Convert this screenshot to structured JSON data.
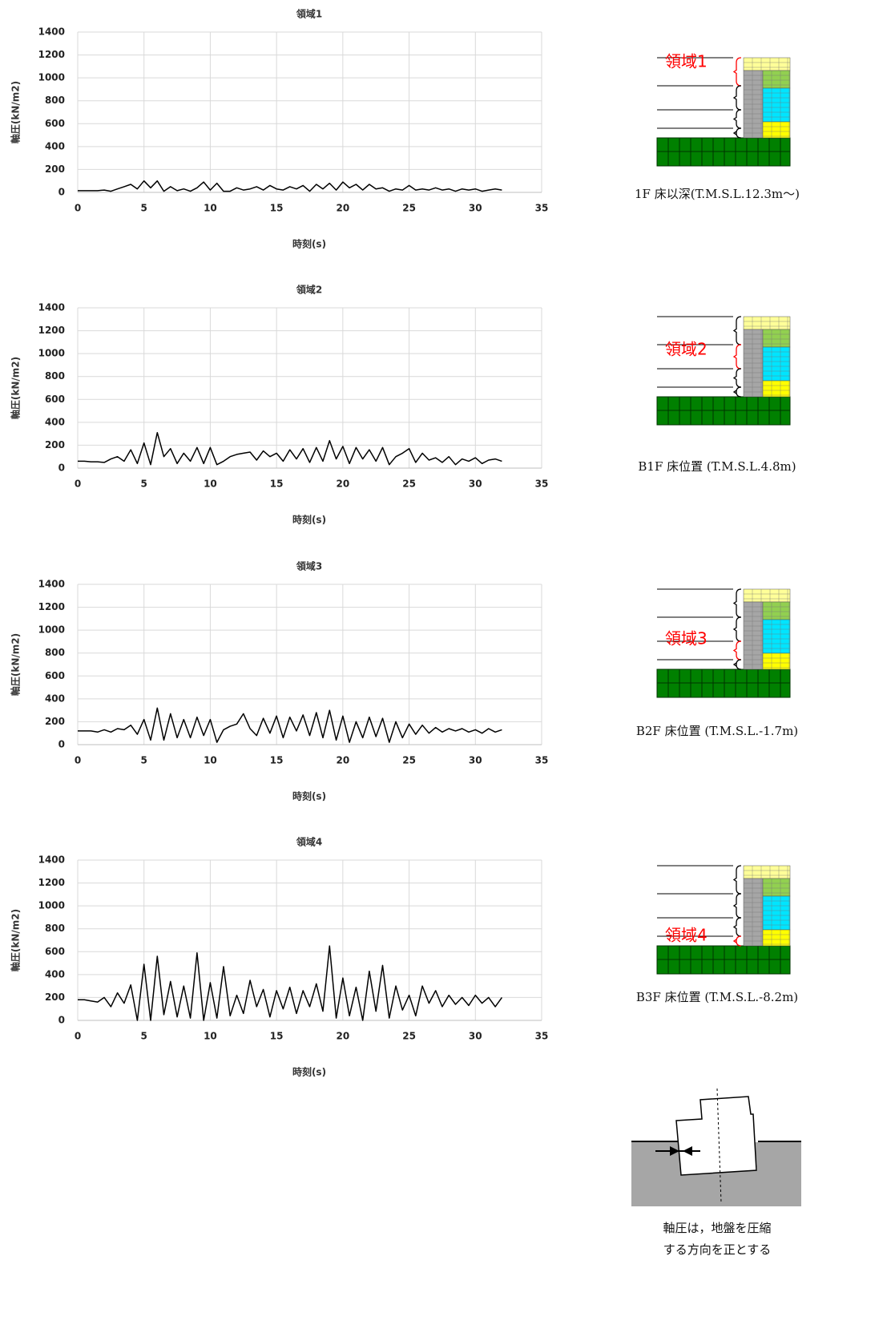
{
  "chart_data": [
    {
      "type": "line",
      "title": "領域1",
      "x_label": "時刻(s)",
      "y_label": "軸圧(kN/m2)",
      "color": "#000000",
      "grid": true,
      "xlim": [
        0,
        35
      ],
      "xticks": [
        0,
        5,
        10,
        15,
        20,
        25,
        30,
        35
      ],
      "ylim": [
        0,
        1400
      ],
      "yticks": [
        0,
        200,
        400,
        600,
        800,
        1000,
        1200,
        1400
      ],
      "x": [
        0,
        0.5,
        1,
        1.5,
        2,
        2.5,
        3,
        3.5,
        4,
        4.5,
        5,
        5.5,
        6,
        6.5,
        7,
        7.5,
        8,
        8.5,
        9,
        9.5,
        10,
        10.5,
        11,
        11.5,
        12,
        12.5,
        13,
        13.5,
        14,
        14.5,
        15,
        15.5,
        16,
        16.5,
        17,
        17.5,
        18,
        18.5,
        19,
        19.5,
        20,
        20.5,
        21,
        21.5,
        22,
        22.5,
        23,
        23.5,
        24,
        24.5,
        25,
        25.5,
        26,
        26.5,
        27,
        27.5,
        28,
        28.5,
        29,
        29.5,
        30,
        30.5,
        31,
        31.5,
        32
      ],
      "values": [
        15,
        15,
        15,
        15,
        20,
        10,
        30,
        50,
        70,
        30,
        100,
        40,
        100,
        10,
        50,
        15,
        30,
        10,
        40,
        90,
        20,
        80,
        10,
        10,
        40,
        20,
        30,
        50,
        20,
        60,
        30,
        20,
        50,
        30,
        60,
        10,
        70,
        30,
        80,
        20,
        90,
        40,
        70,
        20,
        70,
        30,
        40,
        10,
        30,
        20,
        60,
        20,
        30,
        20,
        40,
        20,
        30,
        10,
        30,
        20,
        30,
        10,
        20,
        30,
        20
      ]
    },
    {
      "type": "line",
      "title": "領域2",
      "x_label": "時刻(s)",
      "y_label": "軸圧(kN/m2)",
      "color": "#000000",
      "grid": true,
      "xlim": [
        0,
        35
      ],
      "xticks": [
        0,
        5,
        10,
        15,
        20,
        25,
        30,
        35
      ],
      "ylim": [
        0,
        1400
      ],
      "yticks": [
        0,
        200,
        400,
        600,
        800,
        1000,
        1200,
        1400
      ],
      "x": [
        0,
        0.5,
        1,
        1.5,
        2,
        2.5,
        3,
        3.5,
        4,
        4.5,
        5,
        5.5,
        6,
        6.5,
        7,
        7.5,
        8,
        8.5,
        9,
        9.5,
        10,
        10.5,
        11,
        11.5,
        12,
        12.5,
        13,
        13.5,
        14,
        14.5,
        15,
        15.5,
        16,
        16.5,
        17,
        17.5,
        18,
        18.5,
        19,
        19.5,
        20,
        20.5,
        21,
        21.5,
        22,
        22.5,
        23,
        23.5,
        24,
        24.5,
        25,
        25.5,
        26,
        26.5,
        27,
        27.5,
        28,
        28.5,
        29,
        29.5,
        30,
        30.5,
        31,
        31.5,
        32
      ],
      "values": [
        60,
        60,
        55,
        55,
        50,
        80,
        100,
        60,
        160,
        40,
        220,
        30,
        310,
        100,
        170,
        40,
        130,
        60,
        180,
        40,
        180,
        30,
        60,
        100,
        120,
        130,
        140,
        70,
        150,
        100,
        130,
        60,
        160,
        80,
        170,
        50,
        180,
        60,
        240,
        80,
        190,
        40,
        180,
        80,
        160,
        60,
        180,
        30,
        100,
        130,
        170,
        50,
        130,
        70,
        90,
        50,
        100,
        30,
        80,
        60,
        90,
        40,
        70,
        80,
        60
      ]
    },
    {
      "type": "line",
      "title": "領域3",
      "x_label": "時刻(s)",
      "y_label": "軸圧(kN/m2)",
      "color": "#000000",
      "grid": true,
      "xlim": [
        0,
        35
      ],
      "xticks": [
        0,
        5,
        10,
        15,
        20,
        25,
        30,
        35
      ],
      "ylim": [
        0,
        1400
      ],
      "yticks": [
        0,
        200,
        400,
        600,
        800,
        1000,
        1200,
        1400
      ],
      "x": [
        0,
        0.5,
        1,
        1.5,
        2,
        2.5,
        3,
        3.5,
        4,
        4.5,
        5,
        5.5,
        6,
        6.5,
        7,
        7.5,
        8,
        8.5,
        9,
        9.5,
        10,
        10.5,
        11,
        11.5,
        12,
        12.5,
        13,
        13.5,
        14,
        14.5,
        15,
        15.5,
        16,
        16.5,
        17,
        17.5,
        18,
        18.5,
        19,
        19.5,
        20,
        20.5,
        21,
        21.5,
        22,
        22.5,
        23,
        23.5,
        24,
        24.5,
        25,
        25.5,
        26,
        26.5,
        27,
        27.5,
        28,
        28.5,
        29,
        29.5,
        30,
        30.5,
        31,
        31.5,
        32
      ],
      "values": [
        120,
        120,
        120,
        110,
        130,
        110,
        140,
        130,
        170,
        90,
        220,
        40,
        320,
        40,
        270,
        60,
        220,
        60,
        240,
        80,
        220,
        20,
        130,
        160,
        180,
        270,
        140,
        80,
        230,
        100,
        250,
        60,
        240,
        120,
        260,
        80,
        280,
        60,
        300,
        40,
        250,
        20,
        200,
        60,
        240,
        70,
        230,
        20,
        200,
        60,
        180,
        90,
        170,
        100,
        150,
        110,
        140,
        120,
        140,
        110,
        130,
        100,
        140,
        110,
        130
      ]
    },
    {
      "type": "line",
      "title": "領域4",
      "x_label": "時刻(s)",
      "y_label": "軸圧(kN/m2)",
      "color": "#000000",
      "grid": true,
      "xlim": [
        0,
        35
      ],
      "xticks": [
        0,
        5,
        10,
        15,
        20,
        25,
        30,
        35
      ],
      "ylim": [
        0,
        1400
      ],
      "yticks": [
        0,
        200,
        400,
        600,
        800,
        1000,
        1200,
        1400
      ],
      "x": [
        0,
        0.5,
        1,
        1.5,
        2,
        2.5,
        3,
        3.5,
        4,
        4.5,
        5,
        5.5,
        6,
        6.5,
        7,
        7.5,
        8,
        8.5,
        9,
        9.5,
        10,
        10.5,
        11,
        11.5,
        12,
        12.5,
        13,
        13.5,
        14,
        14.5,
        15,
        15.5,
        16,
        16.5,
        17,
        17.5,
        18,
        18.5,
        19,
        19.5,
        20,
        20.5,
        21,
        21.5,
        22,
        22.5,
        23,
        23.5,
        24,
        24.5,
        25,
        25.5,
        26,
        26.5,
        27,
        27.5,
        28,
        28.5,
        29,
        29.5,
        30,
        30.5,
        31,
        31.5,
        32
      ],
      "values": [
        180,
        180,
        170,
        160,
        200,
        120,
        240,
        150,
        310,
        0,
        490,
        0,
        560,
        50,
        340,
        30,
        300,
        20,
        590,
        0,
        330,
        20,
        470,
        40,
        220,
        60,
        350,
        120,
        270,
        30,
        260,
        100,
        290,
        60,
        260,
        120,
        320,
        80,
        650,
        20,
        370,
        40,
        290,
        0,
        430,
        80,
        480,
        20,
        300,
        90,
        220,
        40,
        300,
        150,
        260,
        120,
        220,
        140,
        200,
        130,
        220,
        150,
        200,
        120,
        200
      ]
    }
  ],
  "diagrams": [
    {
      "label": "領域1",
      "caption": "1F 床以深(T.M.S.L.12.3m～)"
    },
    {
      "label": "領域2",
      "caption": "B1F 床位置 (T.M.S.L.4.8m)"
    },
    {
      "label": "領域3",
      "caption": "B2F 床位置 (T.M.S.L.-1.7m)"
    },
    {
      "label": "領域4",
      "caption": "B3F 床位置 (T.M.S.L.-8.2m)"
    }
  ],
  "note": [
    "軸圧は，地盤を圧縮",
    "する方向を正とする"
  ]
}
